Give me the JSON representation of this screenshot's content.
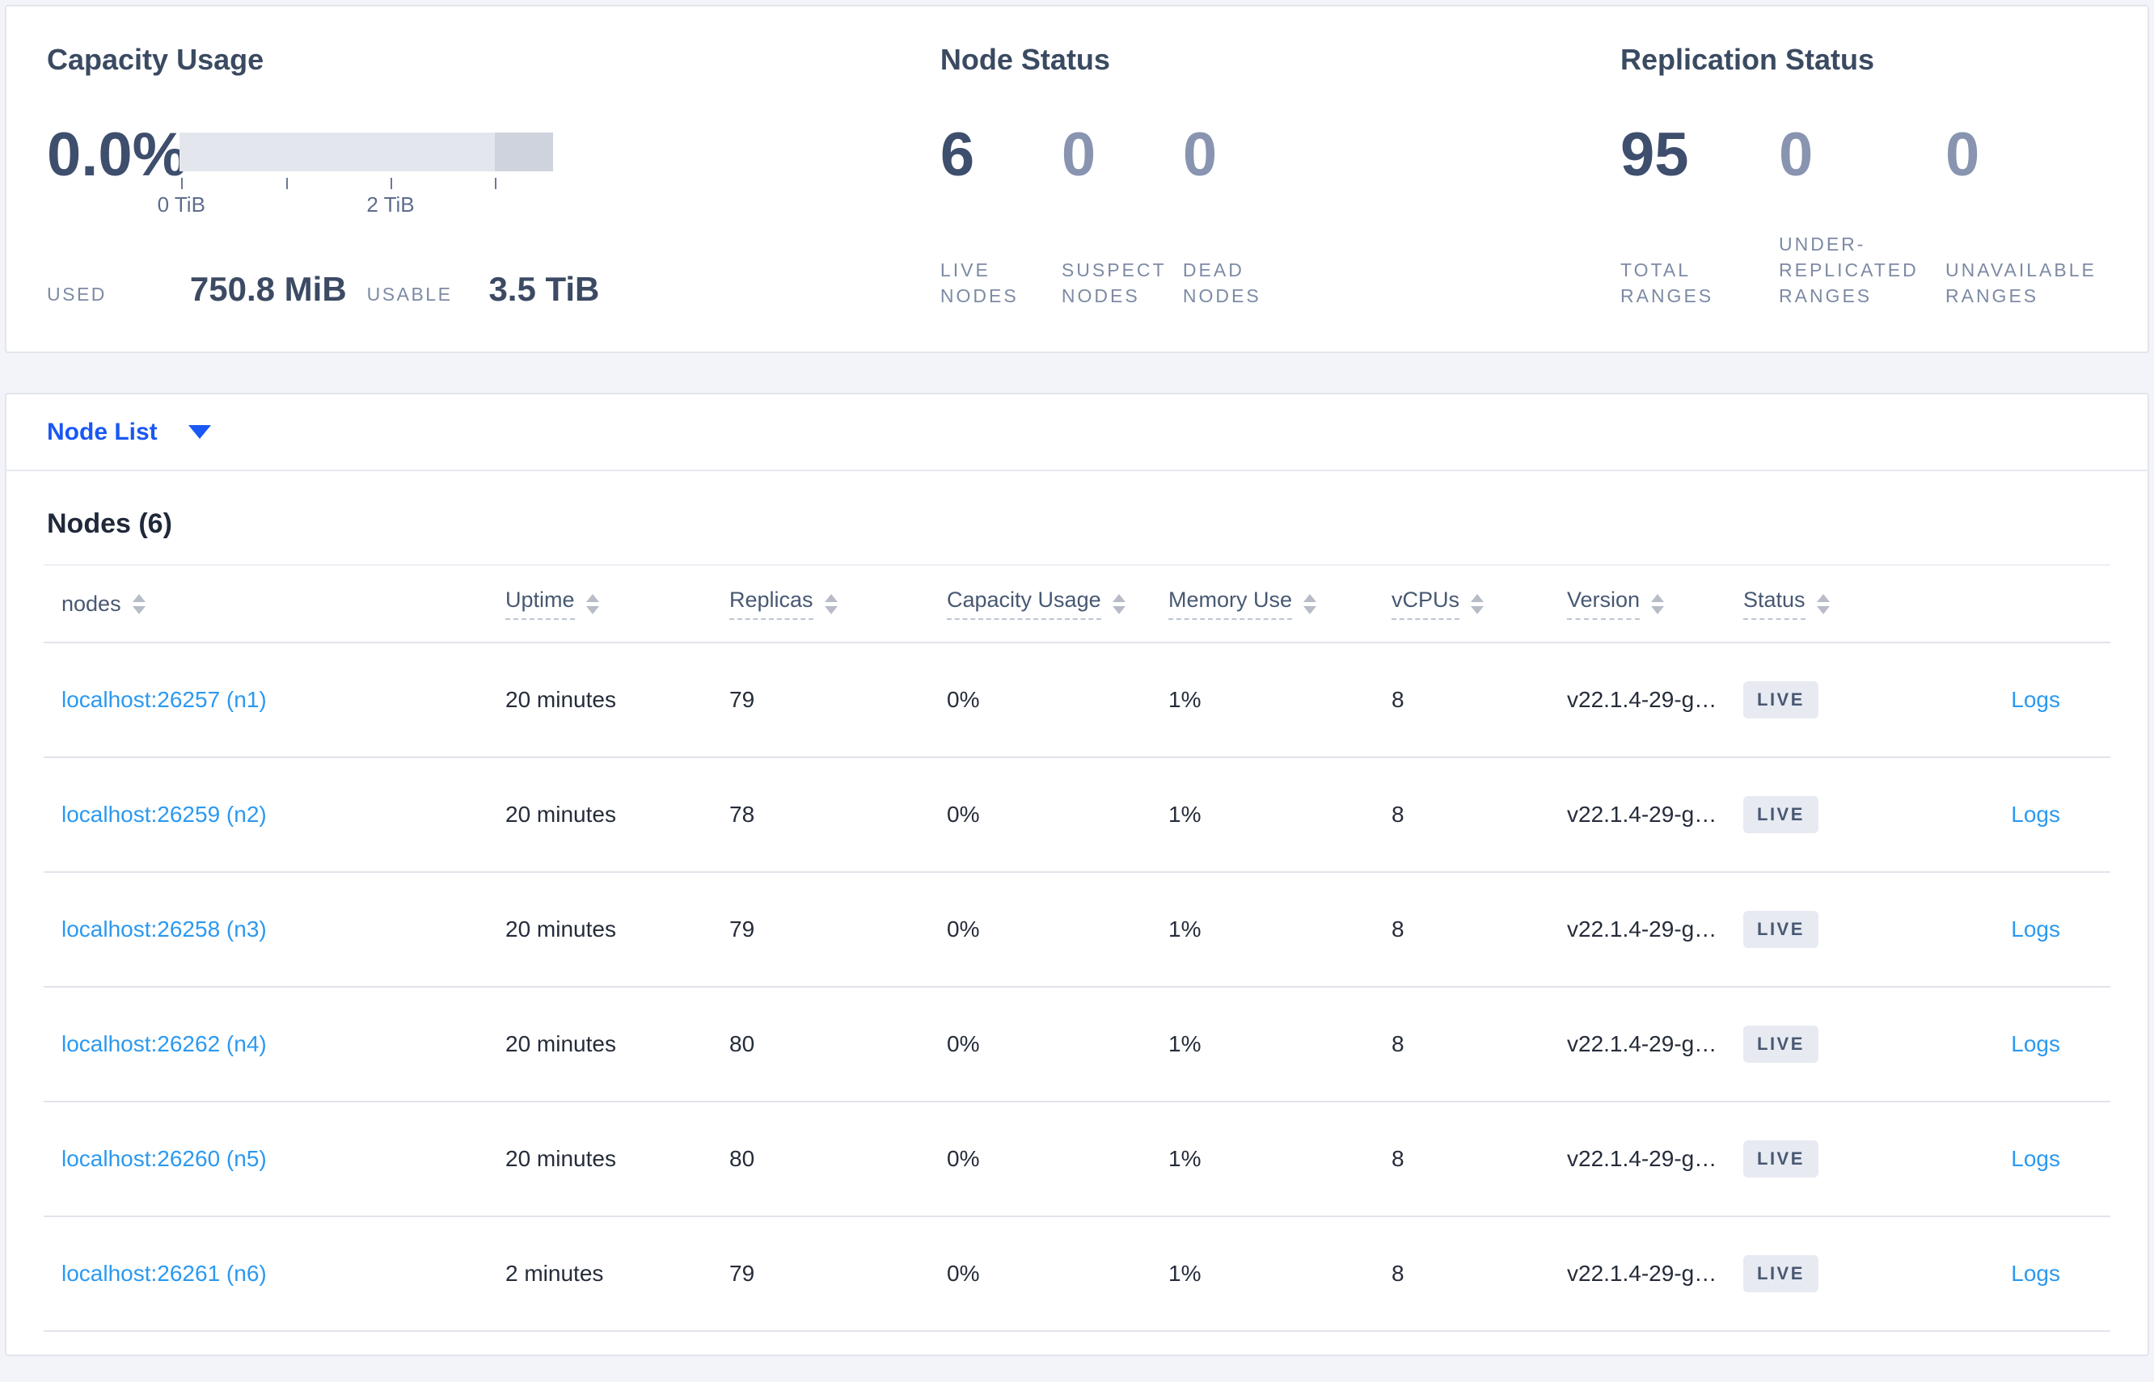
{
  "colors": {
    "accent_blue": "#1a58f3",
    "link_blue": "#2b99f0",
    "stat_dark": "#3e4e6d",
    "stat_muted": "#8894b0",
    "badge_bg": "#e7eaf1",
    "badge_text": "#475872",
    "bar_light": "#e4e6ed",
    "bar_dark": "#cfd3de"
  },
  "summary": {
    "capacity": {
      "title": "Capacity Usage",
      "percent": "0.0%",
      "tick_labels": [
        "0 TiB",
        "2 TiB"
      ],
      "used_label": "USED",
      "used_value": "750.8 MiB",
      "usable_label": "USABLE",
      "usable_value": "3.5 TiB"
    },
    "node_status": {
      "title": "Node Status",
      "stats": [
        {
          "value": "6",
          "label": "LIVE NODES"
        },
        {
          "value": "0",
          "label": "SUSPECT NODES"
        },
        {
          "value": "0",
          "label": "DEAD NODES"
        }
      ]
    },
    "replication": {
      "title": "Replication Status",
      "stats": [
        {
          "value": "95",
          "label": "TOTAL RANGES"
        },
        {
          "value": "0",
          "label": "UNDER-REPLICATED RANGES"
        },
        {
          "value": "0",
          "label": "UNAVAILABLE RANGES"
        }
      ]
    }
  },
  "node_list": {
    "label": "Node List"
  },
  "table": {
    "title": "Nodes (6)",
    "logs_label": "Logs",
    "columns": [
      {
        "label": "nodes"
      },
      {
        "label": "Uptime"
      },
      {
        "label": "Replicas"
      },
      {
        "label": "Capacity Usage"
      },
      {
        "label": "Memory Use"
      },
      {
        "label": "vCPUs"
      },
      {
        "label": "Version"
      },
      {
        "label": "Status"
      }
    ],
    "rows": [
      {
        "node": "localhost:26257 (n1)",
        "uptime": "20 minutes",
        "replicas": "79",
        "capacity": "0%",
        "memory": "1%",
        "vcpus": "8",
        "version": "v22.1.4-29-g…",
        "status": "LIVE"
      },
      {
        "node": "localhost:26259 (n2)",
        "uptime": "20 minutes",
        "replicas": "78",
        "capacity": "0%",
        "memory": "1%",
        "vcpus": "8",
        "version": "v22.1.4-29-g…",
        "status": "LIVE"
      },
      {
        "node": "localhost:26258 (n3)",
        "uptime": "20 minutes",
        "replicas": "79",
        "capacity": "0%",
        "memory": "1%",
        "vcpus": "8",
        "version": "v22.1.4-29-g…",
        "status": "LIVE"
      },
      {
        "node": "localhost:26262 (n4)",
        "uptime": "20 minutes",
        "replicas": "80",
        "capacity": "0%",
        "memory": "1%",
        "vcpus": "8",
        "version": "v22.1.4-29-g…",
        "status": "LIVE"
      },
      {
        "node": "localhost:26260 (n5)",
        "uptime": "20 minutes",
        "replicas": "80",
        "capacity": "0%",
        "memory": "1%",
        "vcpus": "8",
        "version": "v22.1.4-29-g…",
        "status": "LIVE"
      },
      {
        "node": "localhost:26261 (n6)",
        "uptime": "2 minutes",
        "replicas": "79",
        "capacity": "0%",
        "memory": "1%",
        "vcpus": "8",
        "version": "v22.1.4-29-g…",
        "status": "LIVE"
      }
    ]
  }
}
